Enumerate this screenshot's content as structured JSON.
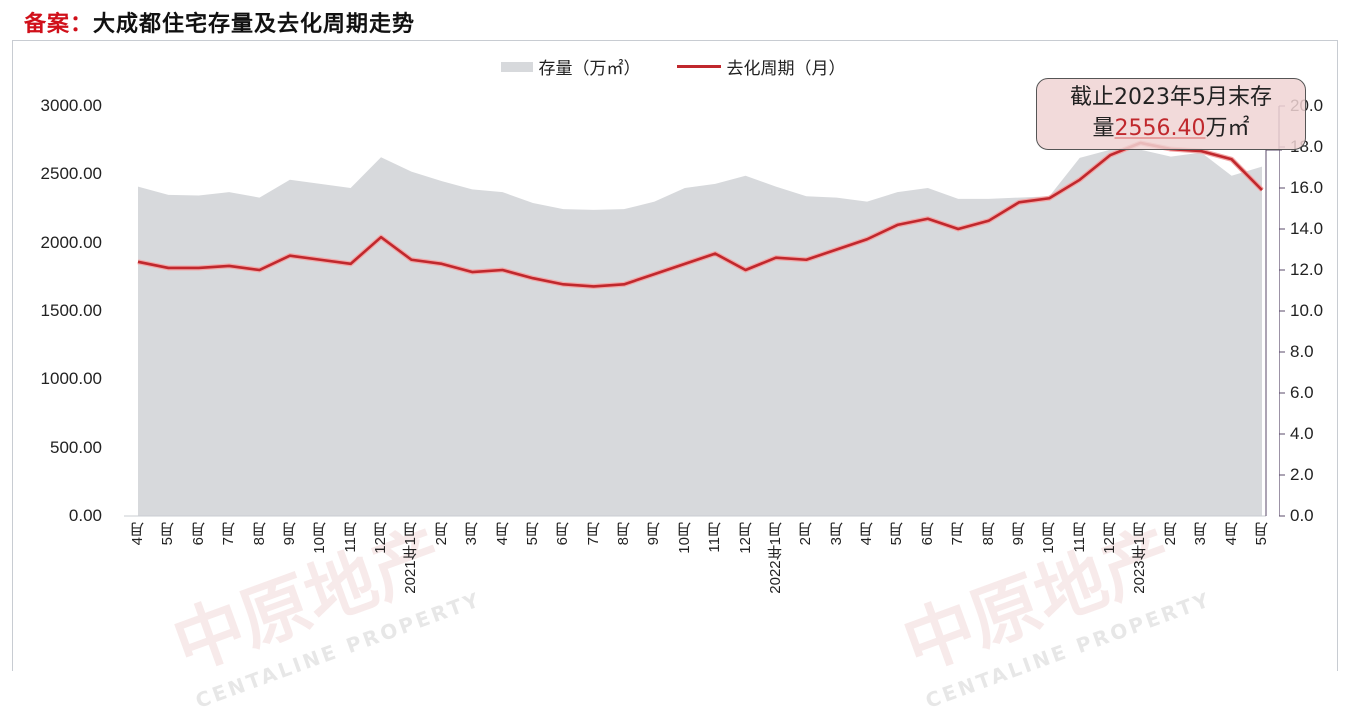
{
  "title": {
    "prefix": "备案：",
    "text": "大成都住宅存量及去化周期走势"
  },
  "legend": [
    {
      "label": "存量（万㎡）",
      "type": "area",
      "color": "#d7d9dc"
    },
    {
      "label": "去化周期（月）",
      "type": "line",
      "color": "#c0282d"
    }
  ],
  "annotation": {
    "line1": "截止2023年5月末存",
    "line2_prefix": "量",
    "value": "2556.40",
    "unit": "万㎡"
  },
  "watermark": {
    "text": "中原地产",
    "sub": "CENTALINE PROPERTY"
  },
  "chart_data": {
    "type": "area+line",
    "title": "大成都住宅存量及去化周期走势",
    "categories": [
      "4月",
      "5月",
      "6月",
      "7月",
      "8月",
      "9月",
      "10月",
      "11月",
      "12月",
      "2021年1月",
      "2月",
      "3月",
      "4月",
      "5月",
      "6月",
      "7月",
      "8月",
      "9月",
      "10月",
      "11月",
      "12月",
      "2022年1月",
      "2月",
      "3月",
      "4月",
      "5月",
      "6月",
      "7月",
      "8月",
      "9月",
      "10月",
      "11月",
      "12月",
      "2023年1月",
      "2月",
      "3月",
      "4月",
      "5月"
    ],
    "series": [
      {
        "name": "存量（万㎡）",
        "type": "area",
        "axis": "left",
        "color": "#d7d9dc",
        "values": [
          2410,
          2350,
          2345,
          2370,
          2330,
          2460,
          2430,
          2400,
          2625,
          2520,
          2450,
          2390,
          2370,
          2290,
          2245,
          2240,
          2245,
          2300,
          2400,
          2430,
          2490,
          2410,
          2340,
          2330,
          2300,
          2370,
          2400,
          2320,
          2320,
          2330,
          2340,
          2620,
          2680,
          2680,
          2630,
          2660,
          2490,
          2556.4
        ]
      },
      {
        "name": "去化周期（月）",
        "type": "line",
        "axis": "right",
        "color": "#c0282d",
        "values": [
          12.4,
          12.1,
          12.1,
          12.2,
          12.0,
          12.7,
          12.5,
          12.3,
          13.6,
          12.5,
          12.3,
          11.9,
          12.0,
          11.6,
          11.3,
          11.2,
          11.3,
          11.8,
          12.3,
          12.8,
          12.0,
          12.6,
          12.5,
          13.0,
          13.5,
          14.2,
          14.5,
          14.0,
          14.4,
          15.3,
          15.5,
          16.4,
          17.6,
          18.2,
          17.9,
          17.8,
          17.4,
          15.9
        ]
      }
    ],
    "left_axis": {
      "ticks": [
        "3000.00",
        "2500.00",
        "2000.00",
        "1500.00",
        "1000.00",
        "500.00",
        "0.00"
      ],
      "ylim": [
        0,
        3000
      ]
    },
    "right_axis": {
      "ticks": [
        "20.0",
        "18.0",
        "16.0",
        "14.0",
        "12.0",
        "10.0",
        "8.0",
        "6.0",
        "4.0",
        "2.0",
        "0.0"
      ],
      "ylim": [
        0,
        20
      ]
    },
    "xlabel": "",
    "ylabel_left": "存量（万㎡）",
    "ylabel_right": "去化周期（月）",
    "grid": false,
    "legend_position": "top"
  }
}
